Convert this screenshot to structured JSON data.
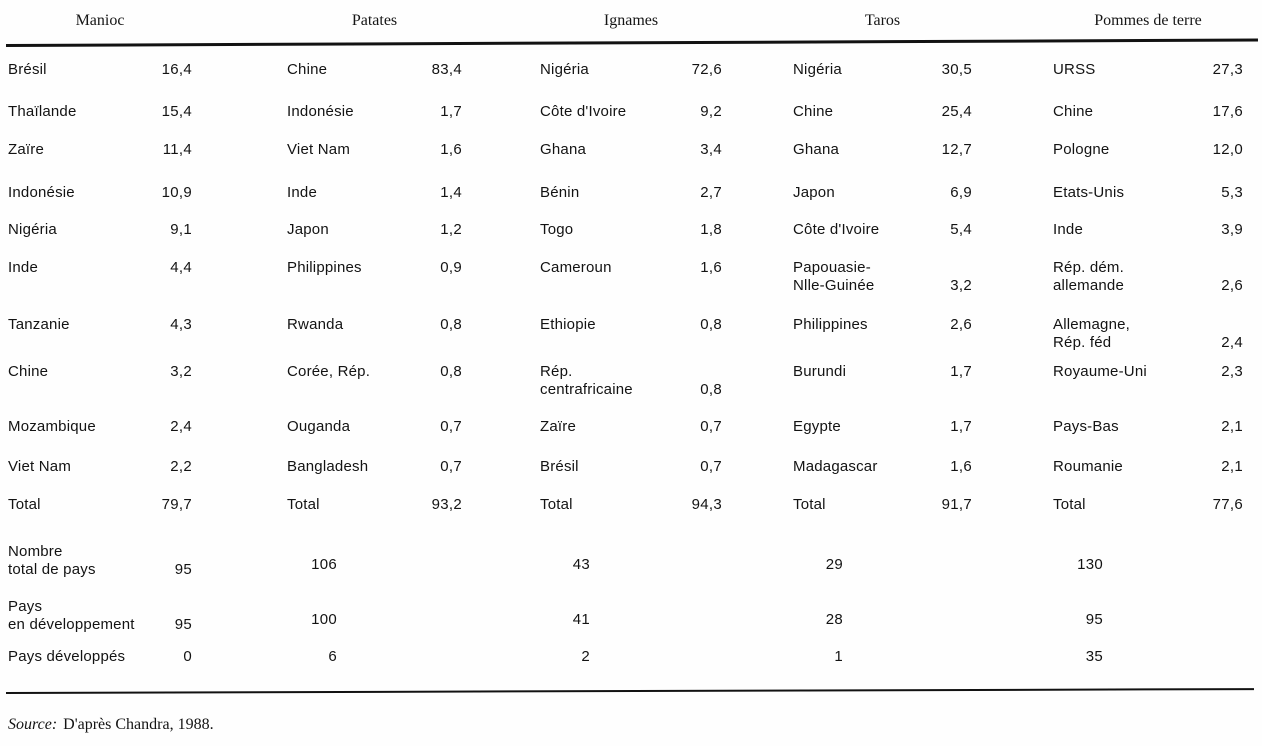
{
  "theme": {
    "background": "#fefefe",
    "text_color": "#131313",
    "rule_color": "#121212"
  },
  "table": {
    "columns": [
      {
        "key": "manioc",
        "header": "Manioc",
        "entries": [
          {
            "name": "Brésil",
            "value": "16,4"
          },
          {
            "name": "Thaïlande",
            "value": "15,4"
          },
          {
            "name": "Zaïre",
            "value": "11,4"
          },
          {
            "name": "Indonésie",
            "value": "10,9"
          },
          {
            "name": "Nigéria",
            "value": "9,1"
          },
          {
            "name": "Inde",
            "value": "4,4"
          },
          {
            "name": "Tanzanie",
            "value": "4,3"
          },
          {
            "name": "Chine",
            "value": "3,2"
          },
          {
            "name": "Mozambique",
            "value": "2,4"
          },
          {
            "name": "Viet Nam",
            "value": "2,2"
          },
          {
            "name": "Total",
            "value": "79,7"
          }
        ]
      },
      {
        "key": "patates",
        "header": "Patates",
        "entries": [
          {
            "name": "Chine",
            "value": "83,4"
          },
          {
            "name": "Indonésie",
            "value": "1,7"
          },
          {
            "name": "Viet Nam",
            "value": "1,6"
          },
          {
            "name": "Inde",
            "value": "1,4"
          },
          {
            "name": "Japon",
            "value": "1,2"
          },
          {
            "name": "Philippines",
            "value": "0,9"
          },
          {
            "name": "Rwanda",
            "value": "0,8"
          },
          {
            "name": "Corée, Rép.",
            "value": "0,8"
          },
          {
            "name": "Ouganda",
            "value": "0,7"
          },
          {
            "name": "Bangladesh",
            "value": "0,7"
          },
          {
            "name": "Total",
            "value": "93,2"
          }
        ]
      },
      {
        "key": "ignames",
        "header": "Ignames",
        "entries": [
          {
            "name": "Nigéria",
            "value": "72,6"
          },
          {
            "name": "Côte d'Ivoire",
            "value": "9,2"
          },
          {
            "name": "Ghana",
            "value": "3,4"
          },
          {
            "name": "Bénin",
            "value": "2,7"
          },
          {
            "name": "Togo",
            "value": "1,8"
          },
          {
            "name": "Cameroun",
            "value": "1,6"
          },
          {
            "name": "Ethiopie",
            "value": "0,8"
          },
          {
            "name": "Rép.\ncentrafricaine",
            "value": "0,8"
          },
          {
            "name": "Zaïre",
            "value": "0,7"
          },
          {
            "name": "Brésil",
            "value": "0,7"
          },
          {
            "name": "Total",
            "value": "94,3"
          }
        ]
      },
      {
        "key": "taros",
        "header": "Taros",
        "entries": [
          {
            "name": "Nigéria",
            "value": "30,5"
          },
          {
            "name": "Chine",
            "value": "25,4"
          },
          {
            "name": "Ghana",
            "value": "12,7"
          },
          {
            "name": "Japon",
            "value": "6,9"
          },
          {
            "name": "Côte d'Ivoire",
            "value": "5,4"
          },
          {
            "name": "Papouasie-\nNlle-Guinée",
            "value": "3,2"
          },
          {
            "name": "Philippines",
            "value": "2,6"
          },
          {
            "name": "Burundi",
            "value": "1,7"
          },
          {
            "name": "Egypte",
            "value": "1,7"
          },
          {
            "name": "Madagascar",
            "value": "1,6"
          },
          {
            "name": "Total",
            "value": "91,7"
          }
        ]
      },
      {
        "key": "pommes-de-terre",
        "header": "Pommes de terre",
        "entries": [
          {
            "name": "URSS",
            "value": "27,3"
          },
          {
            "name": "Chine",
            "value": "17,6"
          },
          {
            "name": "Pologne",
            "value": "12,0"
          },
          {
            "name": "Etats-Unis",
            "value": "5,3"
          },
          {
            "name": "Inde",
            "value": "3,9"
          },
          {
            "name": "Rép. dém.\nallemande",
            "value": "2,6"
          },
          {
            "name": "Allemagne,\nRép. féd",
            "value": "2,4"
          },
          {
            "name": "Royaume-Uni",
            "value": "2,3"
          },
          {
            "name": "Pays-Bas",
            "value": "2,1"
          },
          {
            "name": "Roumanie",
            "value": "2,1"
          },
          {
            "name": "Total",
            "value": "77,6"
          }
        ]
      }
    ],
    "summary_rows": [
      {
        "label": "Nombre\ntotal de pays",
        "values": [
          "95",
          "106",
          "43",
          "29",
          "130"
        ]
      },
      {
        "label": "Pays\nen développement",
        "values": [
          "95",
          "100",
          "41",
          "28",
          "95"
        ]
      },
      {
        "label": "Pays développés",
        "values": [
          "0",
          "6",
          "2",
          "1",
          "35"
        ]
      }
    ]
  },
  "source": {
    "label": "Source:",
    "text": "D'après Chandra, 1988."
  }
}
